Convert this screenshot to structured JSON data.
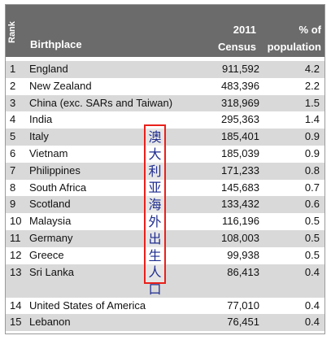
{
  "header": {
    "rank": "Rank",
    "birthplace": "Birthplace",
    "census_line1": "2011",
    "census_line2": "Census",
    "pct_line1": "% of",
    "pct_line2": "population"
  },
  "rows": [
    {
      "rank": "1",
      "birthplace": "England",
      "census": "911,592",
      "pct": "4.2"
    },
    {
      "rank": "2",
      "birthplace": "New Zealand",
      "census": "483,396",
      "pct": "2.2"
    },
    {
      "rank": "3",
      "birthplace": "China (exc. SARs and Taiwan)",
      "census": "318,969",
      "pct": "1.5"
    },
    {
      "rank": "4",
      "birthplace": "India",
      "census": "295,363",
      "pct": "1.4"
    },
    {
      "rank": "5",
      "birthplace": "Italy",
      "census": "185,401",
      "pct": "0.9"
    },
    {
      "rank": "6",
      "birthplace": "Vietnam",
      "census": "185,039",
      "pct": "0.9"
    },
    {
      "rank": "7",
      "birthplace": "Philippines",
      "census": "171,233",
      "pct": "0.8"
    },
    {
      "rank": "8",
      "birthplace": "South Africa",
      "census": "145,683",
      "pct": "0.7"
    },
    {
      "rank": "9",
      "birthplace": "Scotland",
      "census": "133,432",
      "pct": "0.6"
    },
    {
      "rank": "10",
      "birthplace": "Malaysia",
      "census": "116,196",
      "pct": "0.5"
    },
    {
      "rank": "11",
      "birthplace": "Germany",
      "census": "108,003",
      "pct": "0.5"
    },
    {
      "rank": "12",
      "birthplace": "Greece",
      "census": "99,938",
      "pct": "0.5"
    },
    {
      "rank": "13",
      "birthplace": "Sri Lanka",
      "census": "86,413",
      "pct": "0.4"
    },
    {
      "rank": "14",
      "birthplace": "United States of America",
      "census": "77,010",
      "pct": "0.4"
    },
    {
      "rank": "15",
      "birthplace": "Lebanon",
      "census": "76,451",
      "pct": "0.4"
    }
  ],
  "overlay_label": "澳大利亚海外出生人口",
  "colors": {
    "header_bg": "#6b6b6b",
    "row_shade": "#d9d9d9",
    "stamp_border": "#e8211b",
    "stamp_text": "#1f2d8f"
  }
}
